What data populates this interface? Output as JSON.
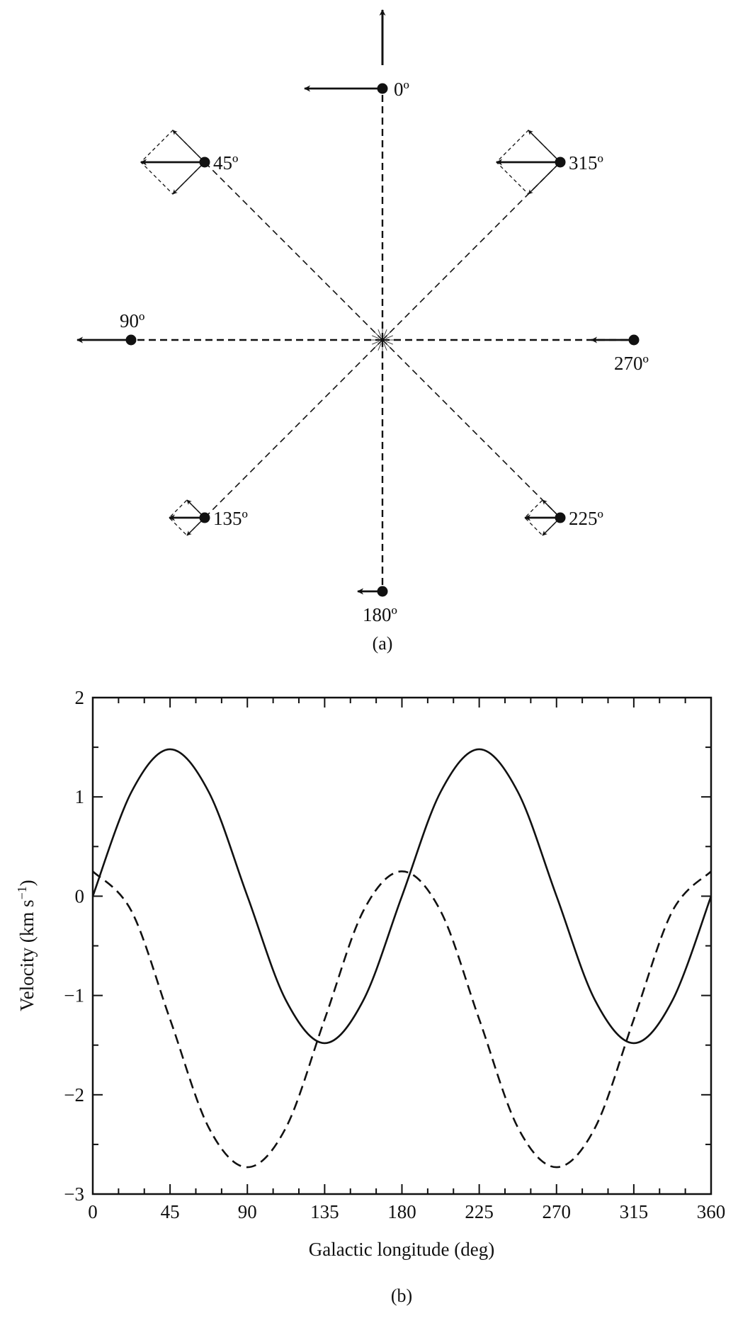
{
  "diagram": {
    "caption": "(a)",
    "points": [
      {
        "label": "0º",
        "angle": 0
      },
      {
        "label": "45º",
        "angle": 45
      },
      {
        "label": "90º",
        "angle": 90
      },
      {
        "label": "135º",
        "angle": 135
      },
      {
        "label": "180º",
        "angle": 180
      },
      {
        "label": "225º",
        "angle": 225
      },
      {
        "label": "270º",
        "angle": 270
      },
      {
        "label": "315º",
        "angle": 315
      }
    ]
  },
  "chart_data": {
    "type": "line",
    "caption": "(b)",
    "xlabel": "Galactic longitude (deg)",
    "ylabel": "Velocity (km s",
    "ylabel_sup": "−1",
    "ylabel_close": ")",
    "xlim": [
      0,
      360
    ],
    "ylim": [
      -3,
      2
    ],
    "xticks": [
      0,
      45,
      90,
      135,
      180,
      225,
      270,
      315,
      360
    ],
    "yticks": [
      -3,
      -2,
      -1,
      0,
      1,
      2
    ],
    "ytick_labels": [
      "−3",
      "−2",
      "−1",
      "0",
      "1",
      "2"
    ],
    "series": [
      {
        "style": "solid",
        "x": [
          0,
          22.5,
          45,
          67.5,
          90,
          112.5,
          135,
          157.5,
          180,
          202.5,
          225,
          247.5,
          270,
          292.5,
          315,
          337.5,
          360
        ],
        "y": [
          0,
          1.05,
          1.48,
          1.05,
          0,
          -1.05,
          -1.48,
          -1.05,
          0,
          1.05,
          1.48,
          1.05,
          0,
          -1.05,
          -1.48,
          -1.05,
          0
        ]
      },
      {
        "style": "dashed",
        "x": [
          0,
          22.5,
          45,
          67.5,
          90,
          112.5,
          135,
          157.5,
          180,
          202.5,
          225,
          247.5,
          270,
          292.5,
          315,
          337.5,
          360
        ],
        "y": [
          0.25,
          -0.15,
          -1.24,
          -2.33,
          -2.73,
          -2.33,
          -1.24,
          -0.15,
          0.25,
          -0.15,
          -1.24,
          -2.33,
          -2.73,
          -2.33,
          -1.24,
          -0.15,
          0.25
        ]
      }
    ]
  }
}
